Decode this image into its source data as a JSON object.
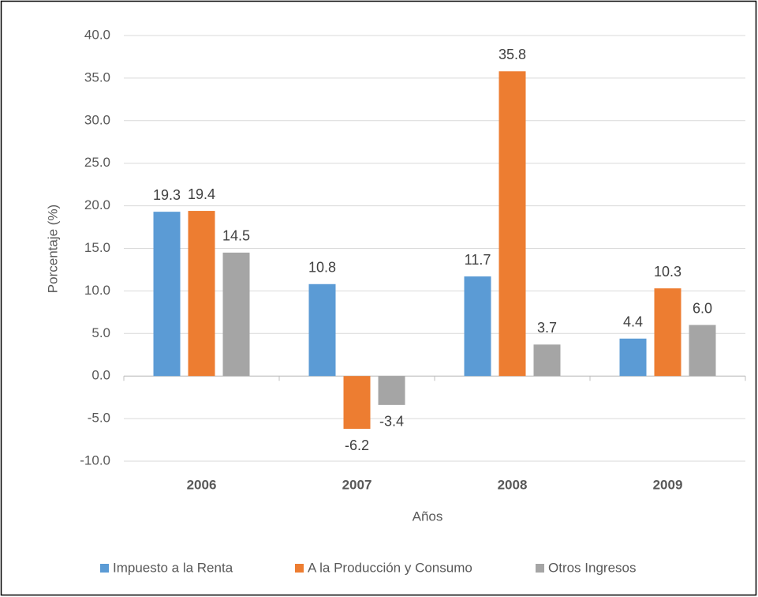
{
  "chart_data": {
    "type": "bar",
    "categories": [
      "2006",
      "2007",
      "2008",
      "2009"
    ],
    "series": [
      {
        "name": "Impuesto a la Renta",
        "color": "#5b9bd5",
        "values": [
          19.3,
          10.8,
          11.7,
          4.4
        ],
        "value_labels": [
          "19.3",
          "10.8",
          "11.7",
          "4.4"
        ]
      },
      {
        "name": "A la Producción y Consumo",
        "color": "#ed7d31",
        "values": [
          19.4,
          -6.2,
          35.8,
          10.3
        ],
        "value_labels": [
          "19.4",
          "-6.2",
          "35.8",
          "10.3"
        ]
      },
      {
        "name": "Otros Ingresos",
        "color": "#a5a5a5",
        "values": [
          14.5,
          -3.4,
          3.7,
          6.0
        ],
        "value_labels": [
          "14.5",
          "-3.4",
          "3.7",
          "6.0"
        ]
      }
    ],
    "x_label": "Años",
    "y_label": "Porcentaje (%)",
    "ylim": [
      -10,
      40
    ],
    "yticks": [
      {
        "value": -10,
        "label": "-10.0"
      },
      {
        "value": -5,
        "label": "-5.0"
      },
      {
        "value": 0,
        "label": "0.0"
      },
      {
        "value": 5,
        "label": "5.0"
      },
      {
        "value": 10,
        "label": "10.0"
      },
      {
        "value": 15,
        "label": "15.0"
      },
      {
        "value": 20,
        "label": "20.0"
      },
      {
        "value": 25,
        "label": "25.0"
      },
      {
        "value": 30,
        "label": "30.0"
      },
      {
        "value": 35,
        "label": "35.0"
      },
      {
        "value": 40,
        "label": "40.0"
      }
    ],
    "grid": true,
    "legend": "bottom"
  }
}
